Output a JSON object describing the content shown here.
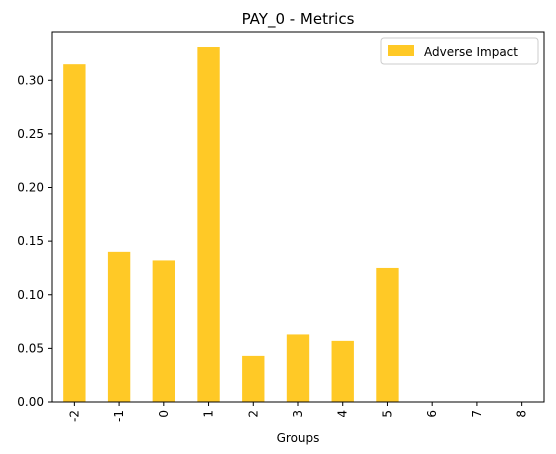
{
  "chart_data": {
    "type": "bar",
    "title": "PAY_0 - Metrics",
    "xlabel": "Groups",
    "ylabel": "",
    "categories": [
      "-2",
      "-1",
      "0",
      "1",
      "2",
      "3",
      "4",
      "5",
      "6",
      "7",
      "8"
    ],
    "series": [
      {
        "name": "Adverse Impact",
        "values": [
          0.315,
          0.14,
          0.132,
          0.331,
          0.043,
          0.063,
          0.057,
          0.125,
          0,
          0,
          0
        ]
      }
    ],
    "ylim": [
      0,
      0.345
    ],
    "yticks": [
      0.0,
      0.05,
      0.1,
      0.15,
      0.2,
      0.25,
      0.3
    ],
    "ytick_labels": [
      "0.00",
      "0.05",
      "0.10",
      "0.15",
      "0.20",
      "0.25",
      "0.30"
    ],
    "bar_color": "#ffc926",
    "grid": false,
    "legend_placement": "top-right",
    "xtick_rotation": "vertical"
  }
}
